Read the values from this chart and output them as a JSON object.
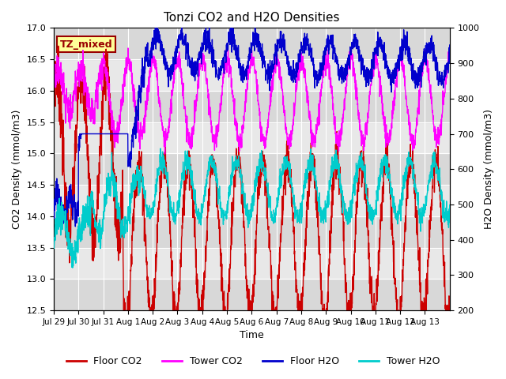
{
  "title": "Tonzi CO2 and H2O Densities",
  "xlabel": "Time",
  "ylabel_left": "CO2 Density (mmol/m3)",
  "ylabel_right": "H2O Density (mmol/m3)",
  "ylim_left": [
    12.5,
    17.0
  ],
  "ylim_right": [
    200,
    1000
  ],
  "legend_labels": [
    "Floor CO2",
    "Tower CO2",
    "Floor H2O",
    "Tower H2O"
  ],
  "legend_colors": [
    "#cc0000",
    "#ff00ff",
    "#0000cc",
    "#00cccc"
  ],
  "annotation_text": "TZ_mixed",
  "annotation_color": "#990000",
  "background_stripe_color": "#d8d8d8",
  "xtick_labels": [
    "Jul 29",
    "Jul 30",
    "Jul 31",
    "Aug 1",
    "Aug 2",
    "Aug 3",
    "Aug 4",
    "Aug 5",
    "Aug 6",
    "Aug 7",
    "Aug 8",
    "Aug 9",
    "Aug 10",
    "Aug 11",
    "Aug 12",
    "Aug 13"
  ],
  "n_points": 2000,
  "random_seed": 7
}
